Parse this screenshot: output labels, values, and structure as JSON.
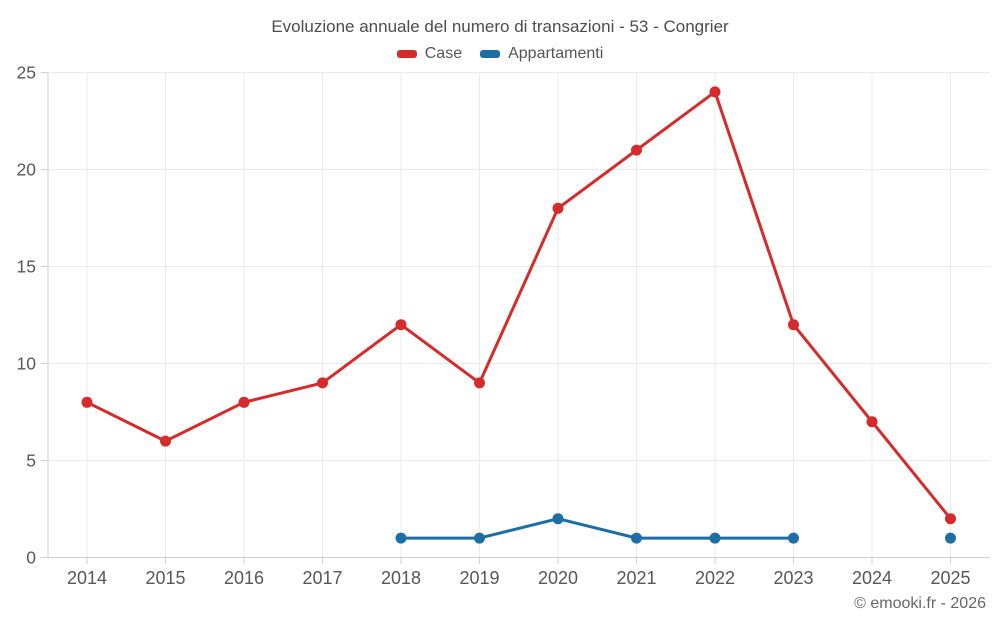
{
  "title": "Evoluzione annuale del numero di transazioni - 53 - Congrier",
  "footer": {
    "copyright": "© emooki.fr - 2026"
  },
  "colors": {
    "case_red": "#d62b2b",
    "appartamenti_blue": "#1c6ea4",
    "grid": "#ebebeb",
    "axis": "#cfcfcf",
    "label_text": "#575757",
    "title_text": "#4c4c4c"
  },
  "chart_data": {
    "type": "line",
    "title": "Evoluzione annuale del numero di transazioni - 53 - Congrier",
    "categories": [
      "2014",
      "2015",
      "2016",
      "2017",
      "2018",
      "2019",
      "2020",
      "2021",
      "2022",
      "2023",
      "2024",
      "2025"
    ],
    "series": [
      {
        "name": "Case",
        "color": "#d62b2b",
        "values": [
          8,
          6,
          8,
          9,
          12,
          9,
          18,
          21,
          24,
          12,
          7,
          2
        ]
      },
      {
        "name": "Appartamenti",
        "color": "#1c6ea4",
        "values": [
          null,
          null,
          null,
          null,
          1,
          1,
          2,
          1,
          1,
          1,
          null,
          1
        ]
      }
    ],
    "xlabel": "",
    "ylabel": "",
    "ylim": [
      0,
      25
    ],
    "yticks": [
      0,
      5,
      10,
      15,
      20,
      25
    ],
    "grid": true,
    "legend_position": "top"
  }
}
